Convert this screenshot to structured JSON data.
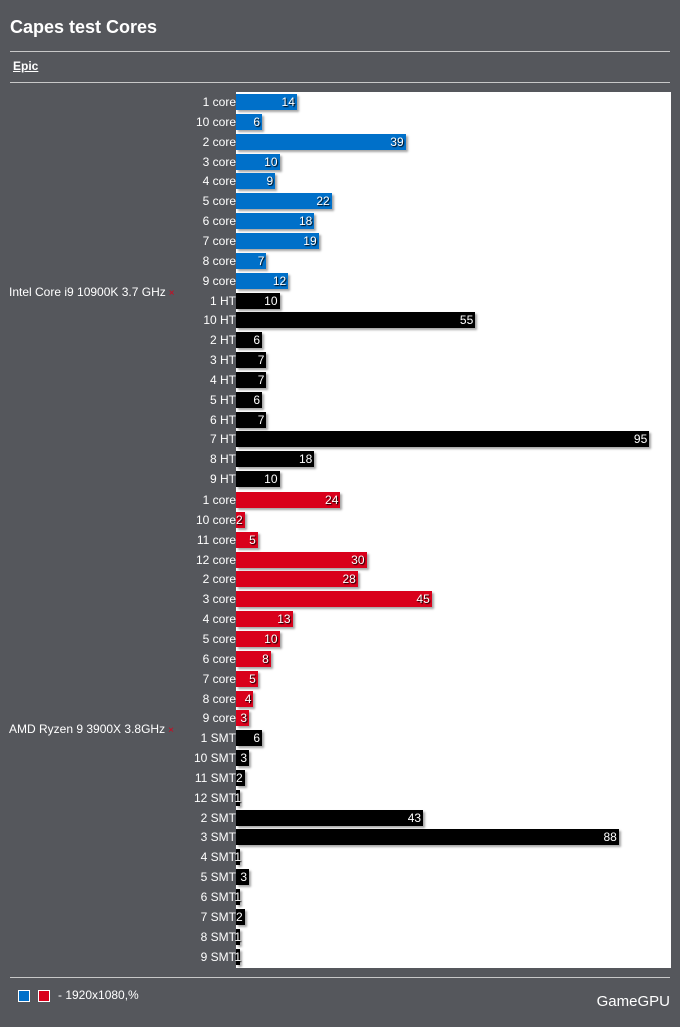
{
  "title": "Capes test Cores",
  "tab": "Epic",
  "colors": {
    "intel_core": "#0070c9",
    "ht_smt": "#000000",
    "amd_core": "#d9001b"
  },
  "chart_data": {
    "type": "bar",
    "orientation": "horizontal",
    "xlim": [
      0,
      100
    ],
    "groups": [
      {
        "label": "Intel Core i9 10900K 3.7 GHz",
        "categories": [
          "1 core",
          "10 core",
          "2 core",
          "3 core",
          "4 core",
          "5 core",
          "6 core",
          "7 core",
          "8 core",
          "9 core",
          "1 HT",
          "10 HT",
          "2 HT",
          "3 HT",
          "4 HT",
          "5 HT",
          "6 HT",
          "7 HT",
          "8 HT",
          "9 HT"
        ],
        "values": [
          14,
          6,
          39,
          10,
          9,
          22,
          18,
          19,
          7,
          12,
          10,
          55,
          6,
          7,
          7,
          6,
          7,
          95,
          18,
          10
        ],
        "bar_colors": [
          "#0070c9",
          "#0070c9",
          "#0070c9",
          "#0070c9",
          "#0070c9",
          "#0070c9",
          "#0070c9",
          "#0070c9",
          "#0070c9",
          "#0070c9",
          "#000000",
          "#000000",
          "#000000",
          "#000000",
          "#000000",
          "#000000",
          "#000000",
          "#000000",
          "#000000",
          "#000000"
        ]
      },
      {
        "label": "AMD Ryzen 9 3900X 3.8GHz",
        "categories": [
          "1 core",
          "10 core",
          "11 core",
          "12 core",
          "2 core",
          "3 core",
          "4 core",
          "5 core",
          "6 core",
          "7 core",
          "8 core",
          "9 core",
          "1 SMT",
          "10 SMT",
          "11 SMT",
          "12 SMT",
          "2 SMT",
          "3 SMT",
          "4 SMT",
          "5 SMT",
          "6 SMT",
          "7 SMT",
          "8 SMT",
          "9 SMT"
        ],
        "values": [
          24,
          2,
          5,
          30,
          28,
          45,
          13,
          10,
          8,
          5,
          4,
          3,
          6,
          3,
          2,
          1,
          43,
          88,
          1,
          3,
          1,
          2,
          1,
          1
        ],
        "bar_colors": [
          "#d9001b",
          "#d9001b",
          "#d9001b",
          "#d9001b",
          "#d9001b",
          "#d9001b",
          "#d9001b",
          "#d9001b",
          "#d9001b",
          "#d9001b",
          "#d9001b",
          "#d9001b",
          "#000000",
          "#000000",
          "#000000",
          "#000000",
          "#000000",
          "#000000",
          "#000000",
          "#000000",
          "#000000",
          "#000000",
          "#000000",
          "#000000"
        ]
      }
    ],
    "legend": {
      "swatches": [
        "#0070c9",
        "#d9001b"
      ],
      "text": "- 1920x1080,%",
      "placement": "bottom-left"
    }
  },
  "group_remove_icon": "×",
  "brand": "GameGPU"
}
